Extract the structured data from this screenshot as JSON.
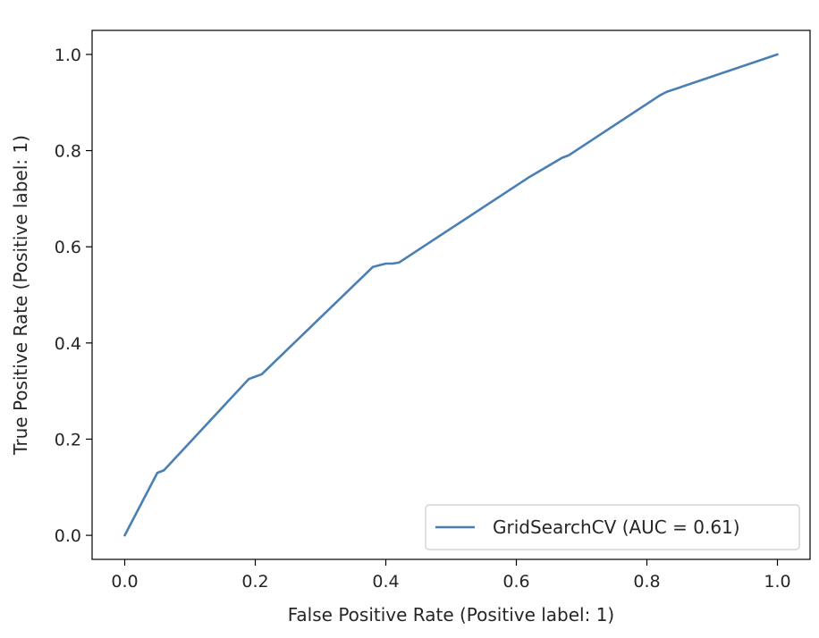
{
  "chart_data": {
    "type": "line",
    "title": "",
    "xlabel": "False Positive Rate (Positive label: 1)",
    "ylabel": "True Positive Rate (Positive label: 1)",
    "xlim": [
      -0.05,
      1.05
    ],
    "ylim": [
      -0.05,
      1.05
    ],
    "xticks": [
      0.0,
      0.2,
      0.4,
      0.6,
      0.8,
      1.0
    ],
    "xtick_labels": [
      "0.0",
      "0.2",
      "0.4",
      "0.6",
      "0.8",
      "1.0"
    ],
    "yticks": [
      0.0,
      0.2,
      0.4,
      0.6,
      0.8,
      1.0
    ],
    "ytick_labels": [
      "0.0",
      "0.2",
      "0.4",
      "0.6",
      "0.8",
      "1.0"
    ],
    "grid": false,
    "legend_position": "lower-right",
    "series": [
      {
        "name": "GridSearchCV (AUC = 0.61)",
        "color": "#4a7fb5",
        "x": [
          0.0,
          0.05,
          0.06,
          0.19,
          0.2,
          0.21,
          0.38,
          0.4,
          0.41,
          0.42,
          0.62,
          0.67,
          0.68,
          0.82,
          0.83,
          1.0
        ],
        "y": [
          0.0,
          0.13,
          0.135,
          0.325,
          0.33,
          0.335,
          0.558,
          0.565,
          0.565,
          0.567,
          0.745,
          0.785,
          0.79,
          0.915,
          0.922,
          1.0
        ]
      }
    ]
  }
}
